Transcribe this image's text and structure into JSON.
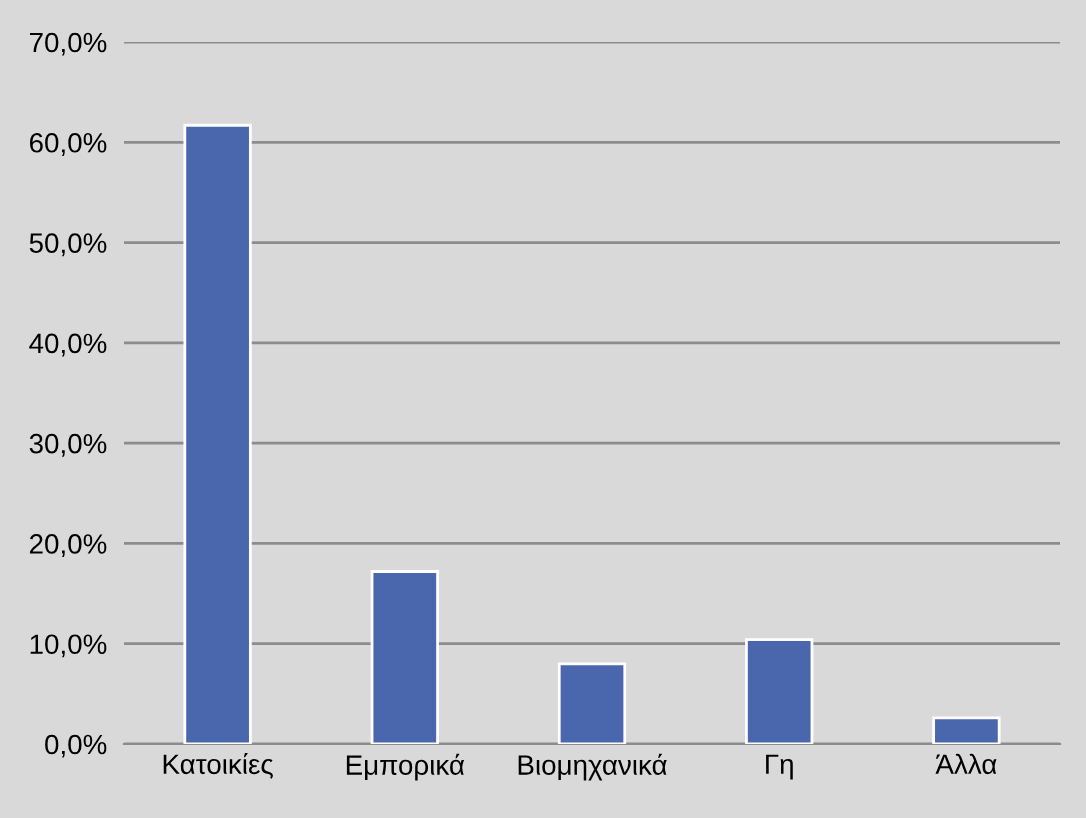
{
  "chart_data": {
    "type": "bar",
    "categories": [
      "Κατοικίες",
      "Εμπορικά",
      "Βιομηχανικά",
      "Γη",
      "Άλλα"
    ],
    "values": [
      61.7,
      17.2,
      8.0,
      10.4,
      2.6
    ],
    "color": "#4a66ac",
    "ylim": [
      0,
      70
    ],
    "yticks": [
      {
        "value": 0,
        "label": "0,0%"
      },
      {
        "value": 10,
        "label": "10,0%"
      },
      {
        "value": 20,
        "label": "20,0%"
      },
      {
        "value": 30,
        "label": "30,0%"
      },
      {
        "value": 40,
        "label": "40,0%"
      },
      {
        "value": 50,
        "label": "50,0%"
      },
      {
        "value": 60,
        "label": "60,0%"
      },
      {
        "value": 70,
        "label": "70,0%"
      }
    ],
    "grid": "y"
  }
}
